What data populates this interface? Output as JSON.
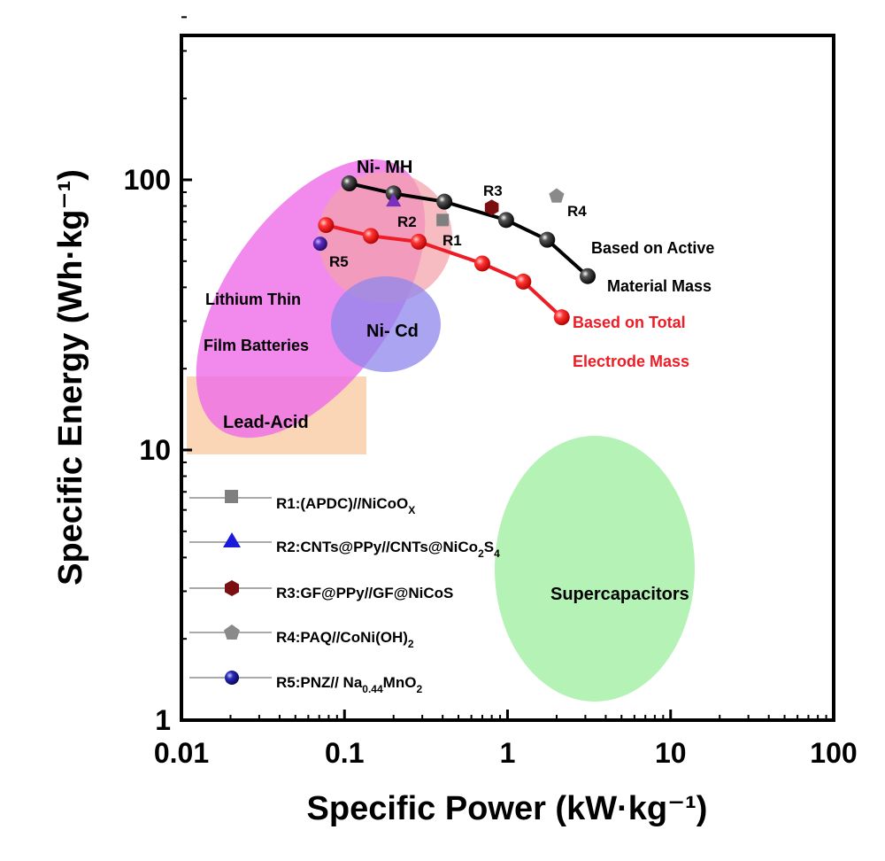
{
  "chart_data": {
    "type": "scatter",
    "title": "",
    "xlabel": "Specific Power (kW·kg⁻¹)",
    "ylabel": "Specific Energy (Wh·kg⁻¹)",
    "x_scale": "log",
    "y_scale": "log",
    "xlim": [
      0.01,
      100
    ],
    "ylim": [
      1,
      400
    ],
    "x_ticks": [
      "0.01",
      "0.1",
      "1",
      "10",
      "100"
    ],
    "y_ticks": [
      "1",
      "10",
      "100"
    ],
    "grid": false,
    "regions": [
      {
        "label": "Lead-Acid",
        "shape": "rect",
        "x_range": [
          0.011,
          0.13
        ],
        "y_range": [
          9.8,
          18.5
        ],
        "color": "#f9cfa9"
      },
      {
        "label_lines": [
          "Lithium Thin",
          "Film Batteries"
        ],
        "shape": "ellipse",
        "color": "#ef6ce8"
      },
      {
        "label": "Ni- MH",
        "shape": "ellipse",
        "color": "#f3a2ab"
      },
      {
        "label": "Ni- Cd",
        "shape": "ellipse",
        "color": "#8f87ec"
      },
      {
        "label": "Supercapacitors",
        "shape": "ellipse",
        "color": "#a8f0a8"
      }
    ],
    "series": [
      {
        "name_lines": [
          "Based on Active",
          "Material Mass"
        ],
        "color": "#000000",
        "x": [
          0.107,
          0.2,
          0.41,
          0.98,
          1.75,
          3.1
        ],
        "y": [
          97,
          89,
          83,
          71,
          60,
          44
        ]
      },
      {
        "name_lines": [
          "Based on Total",
          "Electrode Mass"
        ],
        "color": "#ee1c25",
        "x": [
          0.077,
          0.145,
          0.285,
          0.7,
          1.25,
          2.15
        ],
        "y": [
          68,
          62,
          59,
          49,
          42,
          31
        ]
      }
    ],
    "reference_points": [
      {
        "label": "R1",
        "legend": "R1:(APDC)//NiCoO",
        "legend_sub": "X",
        "marker": "square",
        "color": "#7f7f7f",
        "x": 0.4,
        "y": 71
      },
      {
        "label": "R2",
        "legend": "R2:CNTs@PPy//CNTs@NiCo",
        "legend_sub": "2",
        "legend_tail": "S",
        "legend_sub2": "4",
        "marker": "triangle",
        "color": "#7b2fbe",
        "legend_color": "#1a1adb",
        "x": 0.2,
        "y": 84
      },
      {
        "label": "R3",
        "legend": "R3:GF@PPy//GF@NiCoS",
        "marker": "hexagon",
        "color": "#7b0f0f",
        "x": 0.8,
        "y": 79
      },
      {
        "label": "R4",
        "legend": "R4:PAQ//CoNi(OH)",
        "legend_sub": "2",
        "marker": "pentagon",
        "color": "#8a8a8a",
        "x": 2.0,
        "y": 87
      },
      {
        "label": "R5",
        "legend": "R5:PNZ// Na",
        "legend_sub": "0.44",
        "legend_tail": "MnO",
        "legend_sub2": "2",
        "marker": "circle",
        "color": "#4a1fa8",
        "legend_color": "#10107a",
        "x": 0.071,
        "y": 58
      }
    ]
  }
}
